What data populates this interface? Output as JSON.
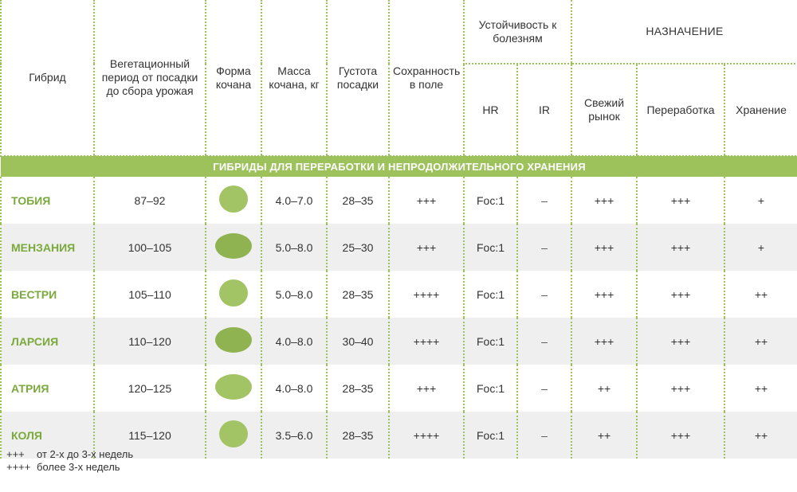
{
  "header": {
    "hybrid": "Гибрид",
    "vegetation": "Вегетационный период от посадки до сбора урожая",
    "shape": "Форма кочана",
    "mass": "Масса кочана, кг",
    "density": "Густота посадки",
    "preservation": "Сохранность в поле",
    "resistance": "Устойчивость к болезням",
    "hr": "HR",
    "ir": "IR",
    "purpose": "НАЗНАЧЕНИЕ",
    "fresh": "Свежий рынок",
    "processing": "Переработка",
    "storage": "Хранение"
  },
  "section_title": "ГИБРИДЫ ДЛЯ ПЕРЕРАБОТКИ И НЕПРОДОЛЖИТЕЛЬНОГО ХРАНЕНИЯ",
  "rows": [
    {
      "name": "ТОБИЯ",
      "period": "87–92",
      "shape": "round",
      "mass": "4.0–7.0",
      "density": "28–35",
      "preservation": "+++",
      "hr": "Foc:1",
      "ir": "–",
      "fresh": "+++",
      "processing": "+++",
      "storage": "+"
    },
    {
      "name": "МЕНЗАНИЯ",
      "period": "100–105",
      "shape": "oval",
      "mass": "5.0–8.0",
      "density": "25–30",
      "preservation": "+++",
      "hr": "Foc:1",
      "ir": "–",
      "fresh": "+++",
      "processing": "+++",
      "storage": "+"
    },
    {
      "name": "ВЕСТРИ",
      "period": "105–110",
      "shape": "round",
      "mass": "5.0–8.0",
      "density": "28–35",
      "preservation": "++++",
      "hr": "Foc:1",
      "ir": "–",
      "fresh": "+++",
      "processing": "+++",
      "storage": "++"
    },
    {
      "name": "ЛАРСИЯ",
      "period": "110–120",
      "shape": "oval",
      "mass": "4.0–8.0",
      "density": "30–40",
      "preservation": "++++",
      "hr": "Foc:1",
      "ir": "–",
      "fresh": "+++",
      "processing": "+++",
      "storage": "++"
    },
    {
      "name": "АТРИЯ",
      "period": "120–125",
      "shape": "oval",
      "mass": "4.0–8.0",
      "density": "28–35",
      "preservation": "+++",
      "hr": "Foc:1",
      "ir": "–",
      "fresh": "++",
      "processing": "+++",
      "storage": "++"
    },
    {
      "name": "КОЛЯ",
      "period": "115–120",
      "shape": "round",
      "mass": "3.5–6.0",
      "density": "28–35",
      "preservation": "++++",
      "hr": "Foc:1",
      "ir": "–",
      "fresh": "++",
      "processing": "+++",
      "storage": "++"
    }
  ],
  "legend": [
    {
      "symbol": "+++",
      "text": "от 2-х до 3-х недель"
    },
    {
      "symbol": "++++",
      "text": "более 3-х недель"
    }
  ],
  "colors": {
    "accent": "#9dc25c",
    "name_text": "#7aa93c",
    "row_alt": "#efefef",
    "shape_fill": "#a3c465"
  }
}
